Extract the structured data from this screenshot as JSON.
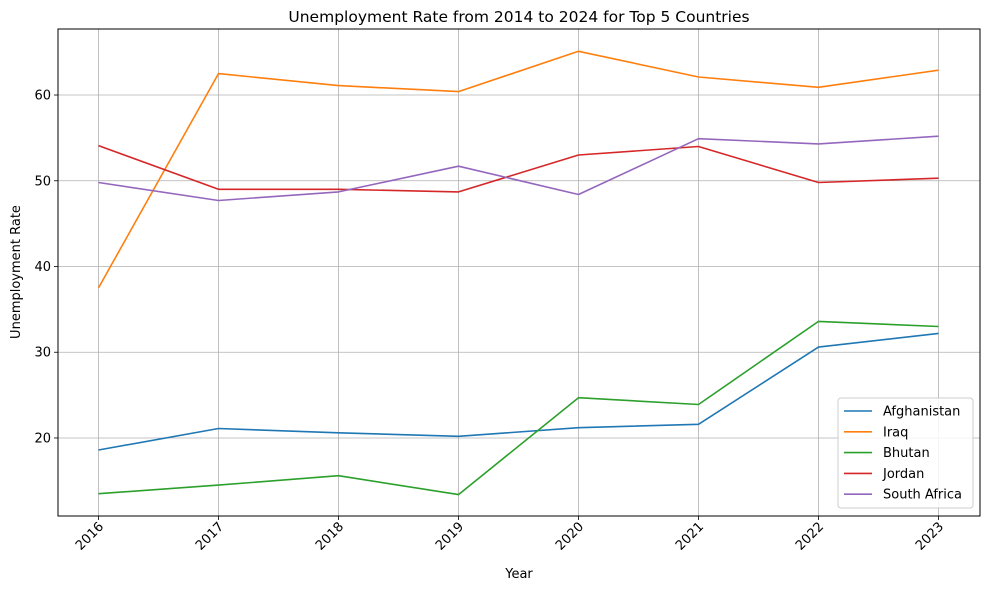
{
  "chart_data": {
    "type": "line",
    "title": "Unemployment Rate from 2014 to 2024 for Top 5 Countries",
    "xlabel": "Year",
    "ylabel": "Unemployment Rate",
    "x": [
      "2016",
      "2017",
      "2018",
      "2019",
      "2020",
      "2021",
      "2022",
      "2023"
    ],
    "ylim": [
      10.9,
      67.7
    ],
    "yticks": [
      "20",
      "30",
      "40",
      "50",
      "60"
    ],
    "grid": true,
    "legend_position": "lower right",
    "series": [
      {
        "name": "Afghanistan",
        "color": "#1f77b4",
        "values": [
          18.6,
          21.1,
          20.6,
          20.2,
          21.2,
          21.6,
          30.6,
          32.2
        ]
      },
      {
        "name": "Iraq",
        "color": "#ff7f0e",
        "values": [
          37.5,
          62.5,
          61.1,
          60.4,
          65.1,
          62.1,
          60.9,
          62.9
        ]
      },
      {
        "name": "Bhutan",
        "color": "#2ca02c",
        "values": [
          13.5,
          14.5,
          15.6,
          13.4,
          24.7,
          23.9,
          33.6,
          33.0
        ]
      },
      {
        "name": "Jordan",
        "color": "#d62728",
        "values": [
          54.1,
          49.0,
          49.0,
          48.7,
          53.0,
          54.0,
          49.8,
          50.3
        ]
      },
      {
        "name": "South Africa",
        "color": "#9467bd",
        "values": [
          49.8,
          47.7,
          48.7,
          51.7,
          48.4,
          54.9,
          54.3,
          55.2
        ]
      }
    ]
  }
}
